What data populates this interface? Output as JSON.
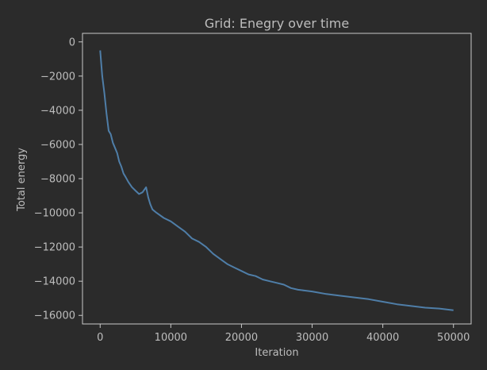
{
  "chart_data": {
    "type": "line",
    "title": "Grid: Enegry over time",
    "xlabel": "Iteration",
    "ylabel": "Total energy",
    "xlim": [
      -2500,
      52500
    ],
    "ylim": [
      -16500,
      500
    ],
    "xticks": [
      0,
      10000,
      20000,
      30000,
      40000,
      50000
    ],
    "xtick_labels": [
      "0",
      "10000",
      "20000",
      "30000",
      "40000",
      "50000"
    ],
    "yticks": [
      0,
      -2000,
      -4000,
      -6000,
      -8000,
      -10000,
      -12000,
      -14000,
      -16000
    ],
    "ytick_labels": [
      "0",
      "−2000",
      "−4000",
      "−6000",
      "−8000",
      "−10000",
      "−12000",
      "−14000",
      "−16000"
    ],
    "grid": false,
    "series": [
      {
        "color": "#4f7ea8",
        "x": [
          0,
          300,
          600,
          900,
          1200,
          1500,
          1800,
          2100,
          2400,
          2700,
          3000,
          3300,
          3600,
          4000,
          4500,
          5000,
          5500,
          6000,
          6500,
          6800,
          7100,
          7400,
          8000,
          9000,
          10000,
          11000,
          12000,
          13000,
          14000,
          15000,
          16000,
          17000,
          18000,
          19000,
          20000,
          21000,
          22000,
          23000,
          24000,
          25000,
          26000,
          27000,
          28000,
          29000,
          30000,
          32000,
          34000,
          36000,
          38000,
          40000,
          42000,
          44000,
          46000,
          48000,
          50000
        ],
        "y": [
          -500,
          -2000,
          -3000,
          -4200,
          -5200,
          -5400,
          -5900,
          -6200,
          -6500,
          -7000,
          -7300,
          -7700,
          -7900,
          -8200,
          -8500,
          -8700,
          -8900,
          -8800,
          -8500,
          -9100,
          -9500,
          -9800,
          -10000,
          -10300,
          -10500,
          -10800,
          -11100,
          -11500,
          -11700,
          -12000,
          -12400,
          -12700,
          -13000,
          -13200,
          -13400,
          -13600,
          -13700,
          -13900,
          -14000,
          -14100,
          -14200,
          -14400,
          -14500,
          -14550,
          -14600,
          -14750,
          -14850,
          -14950,
          -15050,
          -15200,
          -15350,
          -15450,
          -15550,
          -15600,
          -15700
        ]
      }
    ]
  }
}
